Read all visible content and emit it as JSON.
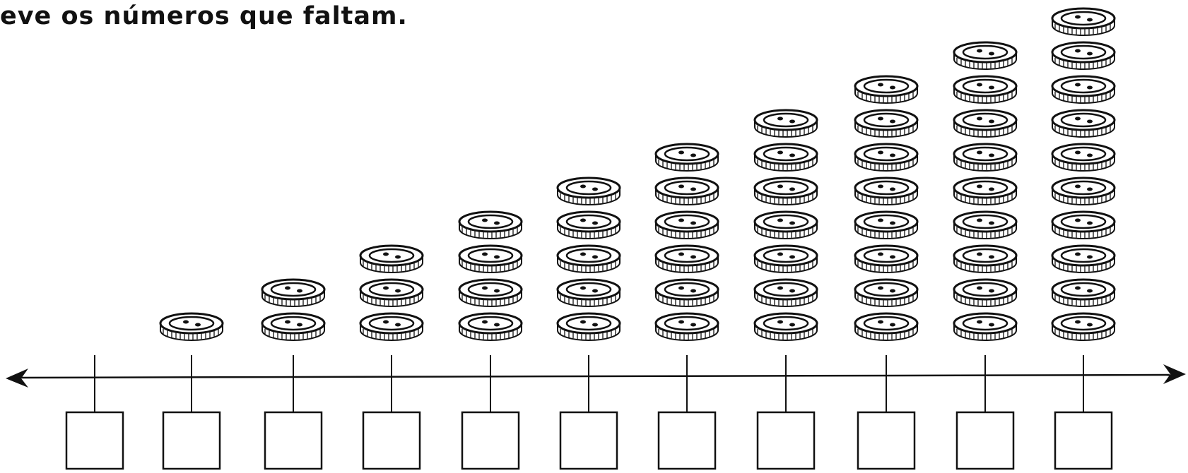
{
  "header": {
    "title": "eve os números que faltam."
  },
  "button_stacks": [
    0,
    1,
    2,
    3,
    4,
    5,
    6,
    7,
    8,
    9,
    10
  ]
}
